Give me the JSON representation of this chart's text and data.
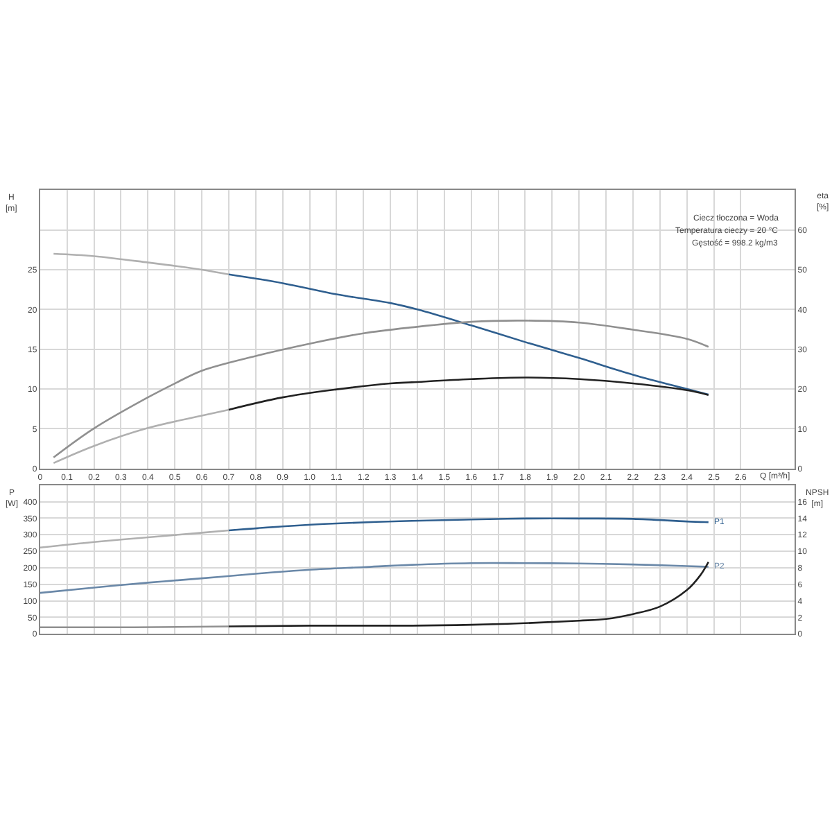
{
  "chart_data": [
    {
      "type": "line",
      "xlabel": "Q [m³/h]",
      "ylabel": "H [m]",
      "y2label": "eta [%]",
      "xlim": [
        0,
        2.8
      ],
      "xticks": [
        0,
        0.1,
        0.2,
        0.3,
        0.4,
        0.5,
        0.6,
        0.7,
        0.8,
        0.9,
        {
          "value": 1,
          "label": "1.0"
        },
        1.1,
        1.2,
        1.3,
        1.4,
        1.5,
        1.6,
        1.7,
        1.8,
        1.9,
        {
          "value": 2,
          "label": "2.0"
        },
        2.1,
        2.2,
        2.3,
        2.4,
        2.5,
        2.6
      ],
      "ylim": [
        0,
        35
      ],
      "yticks": [
        0,
        5,
        10,
        15,
        20,
        25,
        {
          "value": 30,
          "label": null
        }
      ],
      "y2lim": [
        0,
        70
      ],
      "y2ticks": [
        0,
        10,
        20,
        30,
        40,
        50,
        60
      ],
      "grid": true,
      "legend": false,
      "marker": "none",
      "line_style": "solid",
      "annotations": [
        "Ciecz tłoczona = Woda",
        "Temperatura cieczy = 20 °C",
        "Gęstość = 998.2 kg/m3"
      ],
      "series": [
        {
          "color": "#b0b0b0",
          "x": [
            0.05,
            0.2,
            0.4,
            0.6,
            0.7
          ],
          "values": [
            27.0,
            26.7,
            25.9,
            25.0,
            24.4
          ]
        },
        {
          "color": "#2f5f8f",
          "x": [
            0.7,
            0.9,
            1.1,
            1.3,
            1.4,
            1.6,
            1.8,
            2.0,
            2.2,
            2.4,
            2.48
          ],
          "values": [
            24.4,
            23.3,
            21.9,
            20.8,
            20.0,
            18.0,
            15.9,
            13.9,
            11.8,
            10.0,
            9.3
          ]
        },
        {
          "color": "#909090",
          "axis": "y2",
          "x": [
            0.05,
            0.2,
            0.4,
            0.5,
            0.6,
            0.8,
            1.0,
            1.2,
            1.38,
            1.6,
            1.8,
            2.0,
            2.2,
            2.4,
            2.48
          ],
          "values": [
            2.8,
            10.1,
            17.9,
            21.4,
            24.6,
            28.3,
            31.4,
            34.0,
            35.5,
            36.9,
            37.2,
            36.7,
            34.9,
            32.6,
            30.6
          ]
        },
        {
          "color": "#b0b0b0",
          "axis": "y2",
          "x": [
            0.05,
            0.2,
            0.4,
            0.6,
            0.7
          ],
          "values": [
            1.4,
            5.7,
            10.2,
            13.3,
            14.8
          ]
        },
        {
          "color": "#222222",
          "axis": "y2",
          "x": [
            0.7,
            0.9,
            1.1,
            1.3,
            1.38,
            1.6,
            1.8,
            2.0,
            2.2,
            2.4,
            2.48
          ],
          "values": [
            14.8,
            17.9,
            19.9,
            21.4,
            21.7,
            22.5,
            22.9,
            22.5,
            21.4,
            19.7,
            18.5
          ]
        }
      ]
    },
    {
      "type": "line",
      "ylabel": "P [W]",
      "y2label": "NPSH [m]",
      "xlim": [
        0,
        2.8
      ],
      "xticks": [
        0,
        0.1,
        0.2,
        0.3,
        0.4,
        0.5,
        0.6,
        0.7,
        0.8,
        0.9,
        1.0,
        1.1,
        1.2,
        1.3,
        1.4,
        1.5,
        1.6,
        1.7,
        1.8,
        1.9,
        2.0,
        2.1,
        2.2,
        2.3,
        2.4,
        2.5,
        2.6
      ],
      "ylim": [
        0,
        450
      ],
      "yticks": [
        0,
        50,
        100,
        150,
        200,
        250,
        300,
        350,
        400
      ],
      "y2lim": [
        0,
        18
      ],
      "y2ticks": [
        0,
        2,
        4,
        6,
        8,
        10,
        12,
        14,
        16
      ],
      "grid": true,
      "legend": false,
      "marker": "none",
      "line_style": "solid",
      "tick_labels": "y",
      "series": [
        {
          "color": "#b0b0b0",
          "x": [
            0,
            0.2,
            0.4,
            0.6,
            0.7
          ],
          "values": [
            261,
            278,
            292,
            306,
            313
          ]
        },
        {
          "name": "P1",
          "color": "#2f5f8f",
          "x": [
            0.7,
            0.9,
            1.1,
            1.38,
            1.6,
            1.8,
            2.0,
            2.2,
            2.4,
            2.48
          ],
          "values": [
            313,
            325,
            334,
            342,
            346,
            349,
            349,
            348,
            340,
            338
          ]
        },
        {
          "name": "P2",
          "color": "#6a88a8",
          "x": [
            0,
            0.2,
            0.4,
            0.6,
            0.8,
            1.0,
            1.2,
            1.38,
            1.6,
            1.8,
            2.0,
            2.2,
            2.4,
            2.48
          ],
          "values": [
            124,
            140,
            155,
            168,
            182,
            194,
            202,
            209,
            214,
            214,
            213,
            210,
            205,
            203
          ]
        },
        {
          "color": "#909090",
          "axis": "y2",
          "x": [
            0,
            0.35,
            0.7
          ],
          "values": [
            0.8,
            0.8,
            0.9
          ]
        },
        {
          "color": "#222222",
          "axis": "y2",
          "x": [
            0.7,
            1.0,
            1.38,
            1.6,
            1.8,
            2.0,
            2.1,
            2.2,
            2.3,
            2.4,
            2.45,
            2.48
          ],
          "values": [
            0.9,
            1.0,
            1.0,
            1.1,
            1.3,
            1.6,
            1.8,
            2.4,
            3.3,
            5.3,
            7.1,
            8.7
          ]
        }
      ]
    }
  ]
}
